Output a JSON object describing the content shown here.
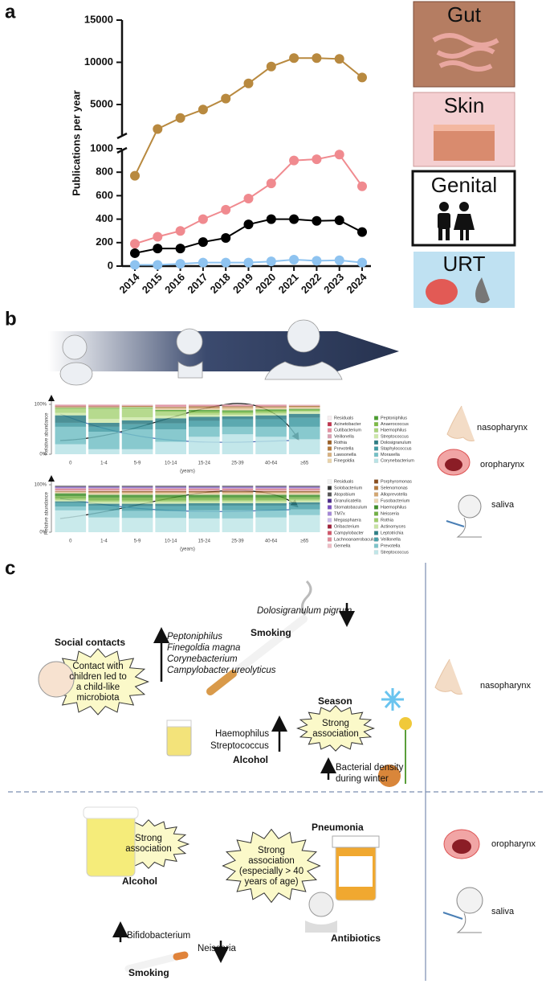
{
  "panel_labels": [
    "a",
    "b",
    "c"
  ],
  "chart_data": [
    {
      "type": "line",
      "ylabel": "Publications per year",
      "categories": [
        "2014",
        "2015",
        "2016",
        "2017",
        "2018",
        "2019",
        "2020",
        "2021",
        "2022",
        "2023",
        "2024"
      ],
      "ylim": [
        0,
        1000
      ],
      "yticks": [
        0,
        200,
        400,
        600,
        800,
        1000
      ],
      "ylim_upper": [
        1000,
        15000
      ],
      "yticks_upper": [
        5000,
        10000,
        15000
      ],
      "series": [
        {
          "name": "Gut",
          "color": "#b8893f",
          "values": [
            770,
            2100,
            3400,
            4400,
            5700,
            7500,
            9500,
            10500,
            10500,
            10400,
            8200
          ]
        },
        {
          "name": "Skin",
          "color": "#f08a8f",
          "values": [
            190,
            250,
            300,
            400,
            480,
            575,
            705,
            900,
            910,
            950,
            680
          ]
        },
        {
          "name": "Genital",
          "color": "#000000",
          "values": [
            110,
            150,
            150,
            205,
            240,
            355,
            400,
            400,
            385,
            390,
            290
          ]
        },
        {
          "name": "URT",
          "color": "#8ec3f0",
          "values": [
            10,
            10,
            20,
            30,
            30,
            30,
            40,
            55,
            45,
            50,
            30
          ]
        }
      ]
    },
    {
      "type": "stacked_bar",
      "site": "nasopharynx",
      "ylabel": "Relative abundance",
      "xlabel": "(years)",
      "categories": [
        "0",
        "1-4",
        "5-9",
        "10-14",
        "15-24",
        "25-39",
        "40-64",
        "≥65"
      ],
      "ylim": [
        0,
        100
      ],
      "yticks": [
        {
          "value": 0,
          "label": "0%"
        },
        {
          "value": 100,
          "label": "100%"
        }
      ],
      "series": [
        {
          "name": "Residuals",
          "color": "#f7eef0",
          "values": [
            1,
            1,
            1,
            1,
            1,
            1,
            1,
            1
          ]
        },
        {
          "name": "Acinetobacter",
          "color": "#c0334d",
          "values": [
            1,
            1,
            0,
            1,
            1,
            1,
            1,
            0
          ]
        },
        {
          "name": "Cutibacterium",
          "color": "#e58ea0",
          "values": [
            1,
            1,
            1,
            2,
            1,
            1,
            1,
            1
          ]
        },
        {
          "name": "Veillonella",
          "color": "#d99fb0",
          "values": [
            1,
            1,
            1,
            1,
            1,
            1,
            1,
            1
          ]
        },
        {
          "name": "Rothia",
          "color": "#9b5f26",
          "values": [
            1,
            1,
            1,
            1,
            1,
            1,
            1,
            1
          ]
        },
        {
          "name": "Prevotella",
          "color": "#b5793a",
          "values": [
            1,
            1,
            1,
            1,
            2,
            1,
            1,
            1
          ]
        },
        {
          "name": "Lawsonella",
          "color": "#d7b07e",
          "values": [
            0,
            0,
            0,
            2,
            2,
            3,
            2,
            2
          ]
        },
        {
          "name": "Finegoldia",
          "color": "#ead3a8",
          "values": [
            1,
            1,
            1,
            2,
            2,
            3,
            2,
            2
          ]
        },
        {
          "name": "Peptoniphilus",
          "color": "#4a9e2f",
          "values": [
            1,
            1,
            1,
            2,
            3,
            3,
            3,
            2
          ]
        },
        {
          "name": "Anaerococcus",
          "color": "#7dbb44",
          "values": [
            1,
            1,
            1,
            2,
            3,
            3,
            3,
            2
          ]
        },
        {
          "name": "Haemophilus",
          "color": "#a9d37a",
          "values": [
            8,
            20,
            18,
            8,
            4,
            3,
            3,
            2
          ]
        },
        {
          "name": "Streptococcus",
          "color": "#cde8a8",
          "values": [
            5,
            8,
            6,
            5,
            4,
            3,
            3,
            4
          ]
        },
        {
          "name": "Dolosigranulum",
          "color": "#2d7d84",
          "values": [
            15,
            8,
            8,
            10,
            8,
            6,
            8,
            8
          ]
        },
        {
          "name": "Staphylococcus",
          "color": "#3f9aa2",
          "values": [
            8,
            10,
            10,
            12,
            12,
            15,
            15,
            18
          ]
        },
        {
          "name": "Moraxella",
          "color": "#73c0c6",
          "values": [
            35,
            35,
            40,
            25,
            20,
            15,
            20,
            25
          ]
        },
        {
          "name": "Corynebacterium",
          "color": "#b8e3e6",
          "values": [
            20,
            10,
            10,
            25,
            35,
            40,
            35,
            30
          ]
        }
      ]
    },
    {
      "type": "stacked_bar",
      "site": "oropharynx",
      "ylabel": "Relative abundance",
      "xlabel": "(years)",
      "categories": [
        "0",
        "1-4",
        "5-9",
        "10-14",
        "15-24",
        "25-39",
        "40-64",
        "≥65"
      ],
      "ylim": [
        0,
        100
      ],
      "yticks": [
        {
          "value": 0,
          "label": "0%"
        },
        {
          "value": 100,
          "label": "100%"
        }
      ],
      "series": [
        {
          "name": "Residuals",
          "color": "#f2f2f2",
          "values": [
            2,
            2,
            2,
            2,
            2,
            2,
            2,
            2
          ]
        },
        {
          "name": "Solobacterium",
          "color": "#333333",
          "values": [
            1,
            1,
            1,
            1,
            1,
            1,
            1,
            1
          ]
        },
        {
          "name": "Atopobium",
          "color": "#555555",
          "values": [
            1,
            1,
            1,
            1,
            1,
            1,
            1,
            1
          ]
        },
        {
          "name": "Granulicatella",
          "color": "#4b2a8a",
          "values": [
            1,
            1,
            1,
            1,
            1,
            1,
            1,
            1
          ]
        },
        {
          "name": "Stomatobaculum",
          "color": "#7a4fc0",
          "values": [
            1,
            1,
            1,
            1,
            1,
            1,
            1,
            1
          ]
        },
        {
          "name": "TM7x",
          "color": "#a487d8",
          "values": [
            1,
            1,
            1,
            1,
            1,
            1,
            1,
            1
          ]
        },
        {
          "name": "Megasphaera",
          "color": "#c9b8ea",
          "values": [
            1,
            1,
            1,
            1,
            1,
            1,
            1,
            1
          ]
        },
        {
          "name": "Oribacterium",
          "color": "#a0203a",
          "values": [
            1,
            1,
            1,
            1,
            1,
            1,
            1,
            1
          ]
        },
        {
          "name": "Campylobacter",
          "color": "#d2566a",
          "values": [
            1,
            1,
            1,
            1,
            1,
            1,
            1,
            1
          ]
        },
        {
          "name": "Lachnoanaerobaculum",
          "color": "#e08b99",
          "values": [
            1,
            1,
            1,
            1,
            1,
            1,
            1,
            1
          ]
        },
        {
          "name": "Gemella",
          "color": "#efbcc4",
          "values": [
            2,
            2,
            2,
            2,
            2,
            2,
            2,
            2
          ]
        },
        {
          "name": "Porphyromonas",
          "color": "#8a4e1e",
          "values": [
            1,
            2,
            2,
            2,
            2,
            2,
            2,
            2
          ]
        },
        {
          "name": "Selenomonas",
          "color": "#b57a3e",
          "values": [
            1,
            1,
            1,
            1,
            1,
            1,
            1,
            1
          ]
        },
        {
          "name": "Alloprevotella",
          "color": "#d4a670",
          "values": [
            1,
            2,
            2,
            2,
            2,
            2,
            2,
            2
          ]
        },
        {
          "name": "Fusobacterium",
          "color": "#ecd6b0",
          "values": [
            2,
            3,
            3,
            3,
            3,
            3,
            3,
            3
          ]
        },
        {
          "name": "Haemophilus",
          "color": "#3f8f2a",
          "values": [
            6,
            6,
            6,
            6,
            6,
            6,
            6,
            5
          ]
        },
        {
          "name": "Neisseria",
          "color": "#72b043",
          "values": [
            5,
            6,
            6,
            6,
            5,
            5,
            5,
            4
          ]
        },
        {
          "name": "Rothia",
          "color": "#9fcd6a",
          "values": [
            3,
            3,
            3,
            3,
            3,
            3,
            3,
            3
          ]
        },
        {
          "name": "Actinomyces",
          "color": "#c8e4a3",
          "values": [
            3,
            4,
            4,
            4,
            4,
            4,
            4,
            4
          ]
        },
        {
          "name": "Leptotrichia",
          "color": "#2e7f86",
          "values": [
            3,
            4,
            5,
            5,
            5,
            5,
            5,
            5
          ]
        },
        {
          "name": "Veillonella",
          "color": "#47a0a8",
          "values": [
            8,
            10,
            10,
            10,
            10,
            10,
            10,
            10
          ]
        },
        {
          "name": "Prevotella",
          "color": "#7dc4ca",
          "values": [
            8,
            15,
            15,
            15,
            17,
            17,
            15,
            12
          ]
        },
        {
          "name": "Streptococcus",
          "color": "#bfe6e8",
          "values": [
            46,
            31,
            30,
            30,
            29,
            29,
            31,
            36
          ]
        }
      ]
    }
  ],
  "panel_b_sites": [
    "nasopharynx",
    "oropharynx",
    "saliva"
  ],
  "panel_c": {
    "nasopharynx": {
      "social_contacts": {
        "title": "Social contacts",
        "bubble": [
          "Contact with",
          "children led to",
          "a child-like",
          "microbiota"
        ]
      },
      "smoking": {
        "title": "Smoking",
        "increased": [
          "Peptoniphilus",
          "Finegoldia magna",
          "Corynebacterium",
          "Campylobacter ureolyticus"
        ],
        "decreased": [
          "Dolosigranulum pigrum"
        ]
      },
      "alcohol": {
        "title": "Alcohol",
        "increased": [
          "Haemophilus",
          "Streptococcus"
        ]
      },
      "season": {
        "title": "Season",
        "bubble": [
          "Strong",
          "association"
        ],
        "note": [
          "Bacterial density",
          "during winter"
        ]
      },
      "site": "nasopharynx"
    },
    "oropharynx": {
      "alcohol": {
        "title": "Alcohol",
        "bubble": [
          "Strong",
          "association"
        ]
      },
      "pneumonia": {
        "title": "Pneumonia",
        "bubble": [
          "Strong",
          "association",
          "(especially > 40",
          "years of age)"
        ],
        "antibiotics": "Antibiotics"
      },
      "smoking": {
        "title": "Smoking",
        "increased": [
          "Bifidobacterium"
        ],
        "decreased": [
          "Neisseria"
        ]
      },
      "sites": [
        "oropharynx",
        "saliva"
      ]
    }
  }
}
